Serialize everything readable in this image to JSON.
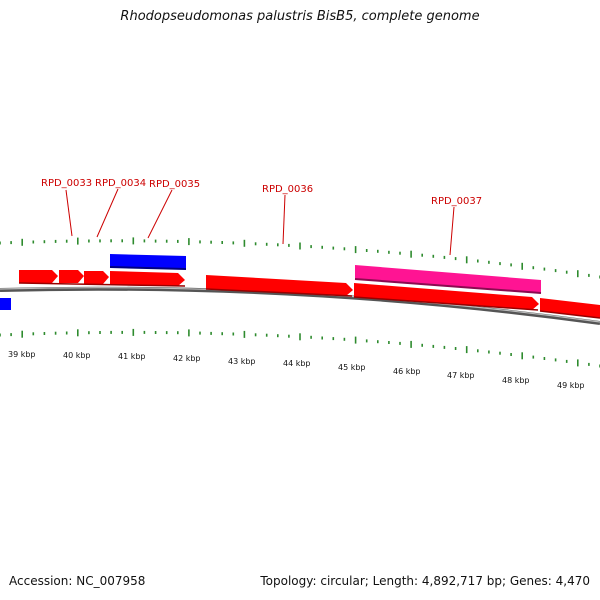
{
  "title": "Rhodopseudomonas palustris BisB5, complete genome",
  "accession": "Accession: NC_007958",
  "summary": "Topology: circular; Length: 4,892,717 bp; Genes: 4,470",
  "colors": {
    "backbone": "#808080",
    "forward_gene": "#ff0000",
    "reverse_gene": "#0000ff",
    "highlight_gene": "#ff1493",
    "ticks": "#2e8b2e",
    "label": "#cc0000"
  },
  "ruler_labels": [
    "39 kbp",
    "40 kbp",
    "41 kbp",
    "42 kbp",
    "43 kbp",
    "44 kbp",
    "45 kbp",
    "46 kbp",
    "47 kbp",
    "48 kbp",
    "49 kbp"
  ],
  "gene_labels": [
    "RPD_0033",
    "RPD_0034",
    "RPD_0035",
    "RPD_0036",
    "RPD_0037"
  ]
}
